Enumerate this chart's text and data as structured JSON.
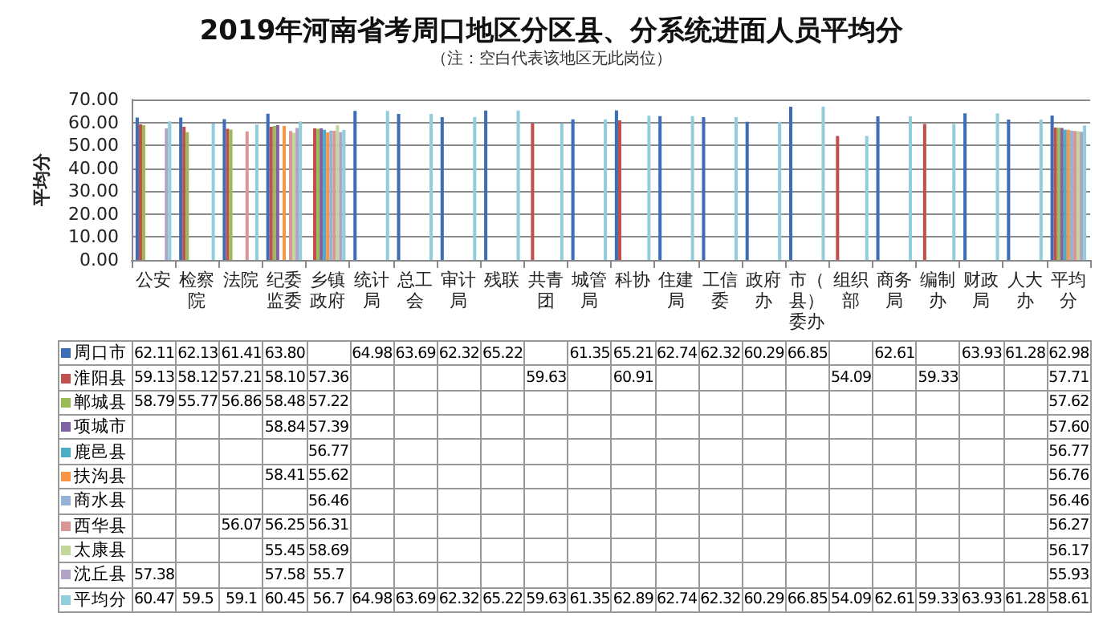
{
  "chart_data": {
    "type": "bar",
    "title": "2019年河南省考周口地区分区县、分系统进面人员平均分",
    "subtitle": "（注：空白代表该地区无此岗位）",
    "ylabel": "平均分",
    "categories": [
      "公安",
      "检察院",
      "法院",
      "纪委监委",
      "乡镇政府",
      "统计局",
      "总工会",
      "审计局",
      "残联",
      "共青团",
      "城管局",
      "科协",
      "住建局",
      "工信委",
      "政府办",
      "市（县）委办",
      "组织部",
      "商务局",
      "编制办",
      "财政局",
      "人大办",
      "平均分"
    ],
    "ylim": [
      0,
      70
    ],
    "yticks": [
      {
        "value": 0,
        "label": "0.00"
      },
      {
        "value": 10,
        "label": "10.00"
      },
      {
        "value": 20,
        "label": "20.00"
      },
      {
        "value": 30,
        "label": "30.00"
      },
      {
        "value": 40,
        "label": "40.00"
      },
      {
        "value": 50,
        "label": "50.00"
      },
      {
        "value": 60,
        "label": "60.00"
      },
      {
        "value": 70,
        "label": "70.00"
      }
    ],
    "grid": "y",
    "legend": "bottom",
    "series": [
      {
        "name": "周口市",
        "color": "#3d6db5",
        "values": [
          62.11,
          62.13,
          61.41,
          63.8,
          null,
          64.98,
          63.69,
          62.32,
          65.22,
          null,
          61.35,
          65.21,
          62.74,
          62.32,
          60.29,
          66.85,
          null,
          62.61,
          null,
          63.93,
          61.28,
          62.98
        ],
        "value_labels": [
          "62.11",
          "62.13",
          "61.41",
          "63.80",
          null,
          "64.98",
          "63.69",
          "62.32",
          "65.22",
          null,
          "61.35",
          "65.21",
          "62.74",
          "62.32",
          "60.29",
          "66.85",
          null,
          "62.61",
          null,
          "63.93",
          "61.28",
          "62.98"
        ]
      },
      {
        "name": "淮阳县",
        "color": "#c0504d",
        "values": [
          59.13,
          58.12,
          57.21,
          58.1,
          57.36,
          null,
          null,
          null,
          null,
          59.63,
          null,
          60.91,
          null,
          null,
          null,
          null,
          54.09,
          null,
          59.33,
          null,
          null,
          57.71
        ],
        "value_labels": [
          "59.13",
          "58.12",
          "57.21",
          "58.10",
          "57.36",
          null,
          null,
          null,
          null,
          "59.63",
          null,
          "60.91",
          null,
          null,
          null,
          null,
          "54.09",
          null,
          "59.33",
          null,
          null,
          "57.71"
        ]
      },
      {
        "name": "郸城县",
        "color": "#9bbb59",
        "values": [
          58.79,
          55.77,
          56.86,
          58.48,
          57.22,
          null,
          null,
          null,
          null,
          null,
          null,
          null,
          null,
          null,
          null,
          null,
          null,
          null,
          null,
          null,
          null,
          57.62
        ],
        "value_labels": [
          "58.79",
          "55.77",
          "56.86",
          "58.48",
          "57.22",
          null,
          null,
          null,
          null,
          null,
          null,
          null,
          null,
          null,
          null,
          null,
          null,
          null,
          null,
          null,
          null,
          "57.62"
        ]
      },
      {
        "name": "项城市",
        "color": "#8064a2",
        "values": [
          null,
          null,
          null,
          58.84,
          57.39,
          null,
          null,
          null,
          null,
          null,
          null,
          null,
          null,
          null,
          null,
          null,
          null,
          null,
          null,
          null,
          null,
          57.6
        ],
        "value_labels": [
          null,
          null,
          null,
          "58.84",
          "57.39",
          null,
          null,
          null,
          null,
          null,
          null,
          null,
          null,
          null,
          null,
          null,
          null,
          null,
          null,
          null,
          null,
          "57.60"
        ]
      },
      {
        "name": "鹿邑县",
        "color": "#4bacc6",
        "values": [
          null,
          null,
          null,
          null,
          56.77,
          null,
          null,
          null,
          null,
          null,
          null,
          null,
          null,
          null,
          null,
          null,
          null,
          null,
          null,
          null,
          null,
          56.77
        ],
        "value_labels": [
          null,
          null,
          null,
          null,
          "56.77",
          null,
          null,
          null,
          null,
          null,
          null,
          null,
          null,
          null,
          null,
          null,
          null,
          null,
          null,
          null,
          null,
          "56.77"
        ]
      },
      {
        "name": "扶沟县",
        "color": "#f79646",
        "values": [
          null,
          null,
          null,
          58.41,
          55.62,
          null,
          null,
          null,
          null,
          null,
          null,
          null,
          null,
          null,
          null,
          null,
          null,
          null,
          null,
          null,
          null,
          56.76
        ],
        "value_labels": [
          null,
          null,
          null,
          "58.41",
          "55.62",
          null,
          null,
          null,
          null,
          null,
          null,
          null,
          null,
          null,
          null,
          null,
          null,
          null,
          null,
          null,
          null,
          "56.76"
        ]
      },
      {
        "name": "商水县",
        "color": "#95b3d7",
        "values": [
          null,
          null,
          null,
          null,
          56.46,
          null,
          null,
          null,
          null,
          null,
          null,
          null,
          null,
          null,
          null,
          null,
          null,
          null,
          null,
          null,
          null,
          56.46
        ],
        "value_labels": [
          null,
          null,
          null,
          null,
          "56.46",
          null,
          null,
          null,
          null,
          null,
          null,
          null,
          null,
          null,
          null,
          null,
          null,
          null,
          null,
          null,
          null,
          "56.46"
        ]
      },
      {
        "name": "西华县",
        "color": "#da9694",
        "values": [
          null,
          null,
          56.07,
          56.25,
          56.31,
          null,
          null,
          null,
          null,
          null,
          null,
          null,
          null,
          null,
          null,
          null,
          null,
          null,
          null,
          null,
          null,
          56.27
        ],
        "value_labels": [
          null,
          null,
          "56.07",
          "56.25",
          "56.31",
          null,
          null,
          null,
          null,
          null,
          null,
          null,
          null,
          null,
          null,
          null,
          null,
          null,
          null,
          null,
          null,
          "56.27"
        ]
      },
      {
        "name": "太康县",
        "color": "#c3d69b",
        "values": [
          null,
          null,
          null,
          55.45,
          58.69,
          null,
          null,
          null,
          null,
          null,
          null,
          null,
          null,
          null,
          null,
          null,
          null,
          null,
          null,
          null,
          null,
          56.17
        ],
        "value_labels": [
          null,
          null,
          null,
          "55.45",
          "58.69",
          null,
          null,
          null,
          null,
          null,
          null,
          null,
          null,
          null,
          null,
          null,
          null,
          null,
          null,
          null,
          null,
          "56.17"
        ]
      },
      {
        "name": "沈丘县",
        "color": "#b3a2c7",
        "values": [
          57.38,
          null,
          null,
          57.58,
          55.7,
          null,
          null,
          null,
          null,
          null,
          null,
          null,
          null,
          null,
          null,
          null,
          null,
          null,
          null,
          null,
          null,
          55.93
        ],
        "value_labels": [
          "57.38",
          null,
          null,
          "57.58",
          "55.7",
          null,
          null,
          null,
          null,
          null,
          null,
          null,
          null,
          null,
          null,
          null,
          null,
          null,
          null,
          null,
          null,
          "55.93"
        ]
      },
      {
        "name": "平均分",
        "color": "#92cddc",
        "values": [
          60.47,
          59.5,
          59.1,
          60.45,
          56.7,
          64.98,
          63.69,
          62.32,
          65.22,
          59.63,
          61.35,
          62.89,
          62.74,
          62.32,
          60.29,
          66.85,
          54.09,
          62.61,
          59.33,
          63.93,
          61.28,
          58.61
        ],
        "value_labels": [
          "60.47",
          "59.5",
          "59.1",
          "60.45",
          "56.7",
          "64.98",
          "63.69",
          "62.32",
          "65.22",
          "59.63",
          "61.35",
          "62.89",
          "62.74",
          "62.32",
          "60.29",
          "66.85",
          "54.09",
          "62.61",
          "59.33",
          "63.93",
          "61.28",
          "58.61"
        ]
      }
    ]
  }
}
